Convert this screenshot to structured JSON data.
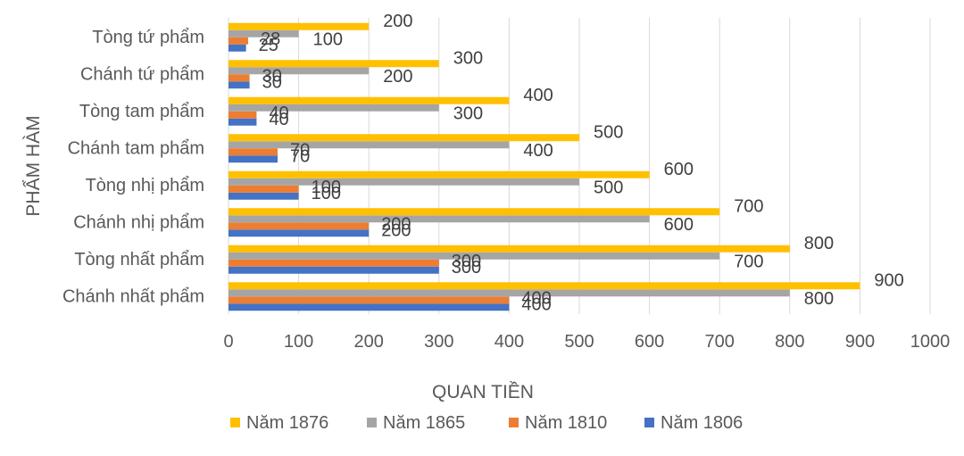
{
  "chart_data": {
    "type": "bar",
    "orientation": "horizontal",
    "categories": [
      "Chánh nhất phẩm",
      "Tòng nhất phẩm",
      "Chánh nhị phẩm",
      "Tòng nhị phẩm",
      "Chánh tam phẩm",
      "Tòng tam phẩm",
      "Chánh tứ phẩm",
      "Tòng tứ phẩm"
    ],
    "series": [
      {
        "name": "Năm 1806",
        "color": "#4472C4",
        "values": [
          400,
          300,
          200,
          100,
          70,
          40,
          30,
          25
        ]
      },
      {
        "name": "Năm 1810",
        "color": "#ED7D31",
        "values": [
          400,
          300,
          200,
          100,
          70,
          40,
          30,
          28
        ]
      },
      {
        "name": "Năm 1865",
        "color": "#A5A5A5",
        "values": [
          800,
          700,
          600,
          500,
          400,
          300,
          200,
          100
        ]
      },
      {
        "name": "Năm 1876",
        "color": "#FFC000",
        "values": [
          900,
          800,
          700,
          600,
          500,
          400,
          300,
          200
        ]
      }
    ],
    "legend_order": [
      "Năm 1876",
      "Năm 1865",
      "Năm 1810",
      "Năm 1806"
    ],
    "xlabel": "QUAN TIỀN",
    "ylabel": "PHẨM HÀM",
    "xlim": [
      0,
      1000
    ],
    "xticks": [
      0,
      100,
      200,
      300,
      400,
      500,
      600,
      700,
      800,
      900,
      1000
    ],
    "grid": "vertical",
    "legend_position": "bottom",
    "data_labels": true
  }
}
